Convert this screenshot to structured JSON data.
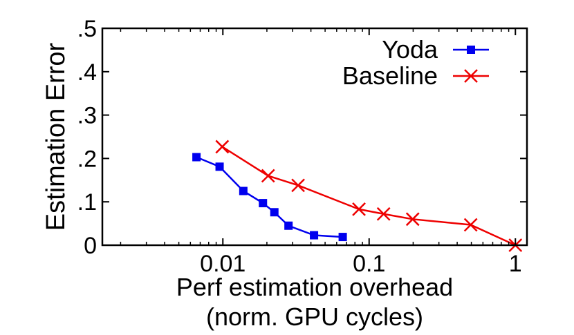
{
  "chart_data": {
    "type": "line",
    "x_scale": "log",
    "xlim": [
      0.0015,
      1.2
    ],
    "ylim": [
      0,
      0.5
    ],
    "xlabel": [
      "Perf estimation overhead",
      "(norm. GPU cycles)"
    ],
    "ylabel": "Estimation Error",
    "x_ticks": [
      {
        "value": 0.01,
        "label": "0.01"
      },
      {
        "value": 0.1,
        "label": "0.1"
      },
      {
        "value": 1,
        "label": "1"
      }
    ],
    "y_ticks": [
      {
        "value": 0,
        "label": "0"
      },
      {
        "value": 0.1,
        "label": ".1"
      },
      {
        "value": 0.2,
        "label": ".2"
      },
      {
        "value": 0.3,
        "label": ".3"
      },
      {
        "value": 0.4,
        "label": ".4"
      },
      {
        "value": 0.5,
        "label": ".5"
      }
    ],
    "grid": false,
    "legend_position": "top-right",
    "series": [
      {
        "name": "Yoda",
        "color": "#0000ee",
        "marker": "square",
        "points": [
          {
            "x": 0.0066,
            "y": 0.203
          },
          {
            "x": 0.0095,
            "y": 0.181
          },
          {
            "x": 0.0138,
            "y": 0.125
          },
          {
            "x": 0.0188,
            "y": 0.097
          },
          {
            "x": 0.0225,
            "y": 0.076
          },
          {
            "x": 0.0281,
            "y": 0.045
          },
          {
            "x": 0.042,
            "y": 0.023
          },
          {
            "x": 0.066,
            "y": 0.019
          }
        ]
      },
      {
        "name": "Baseline",
        "color": "#ee0000",
        "marker": "x",
        "points": [
          {
            "x": 0.0099,
            "y": 0.227
          },
          {
            "x": 0.0204,
            "y": 0.16
          },
          {
            "x": 0.0327,
            "y": 0.138
          },
          {
            "x": 0.0852,
            "y": 0.083
          },
          {
            "x": 0.1256,
            "y": 0.072
          },
          {
            "x": 0.1985,
            "y": 0.06
          },
          {
            "x": 0.495,
            "y": 0.047
          },
          {
            "x": 1.0,
            "y": 0.0
          }
        ]
      }
    ]
  }
}
